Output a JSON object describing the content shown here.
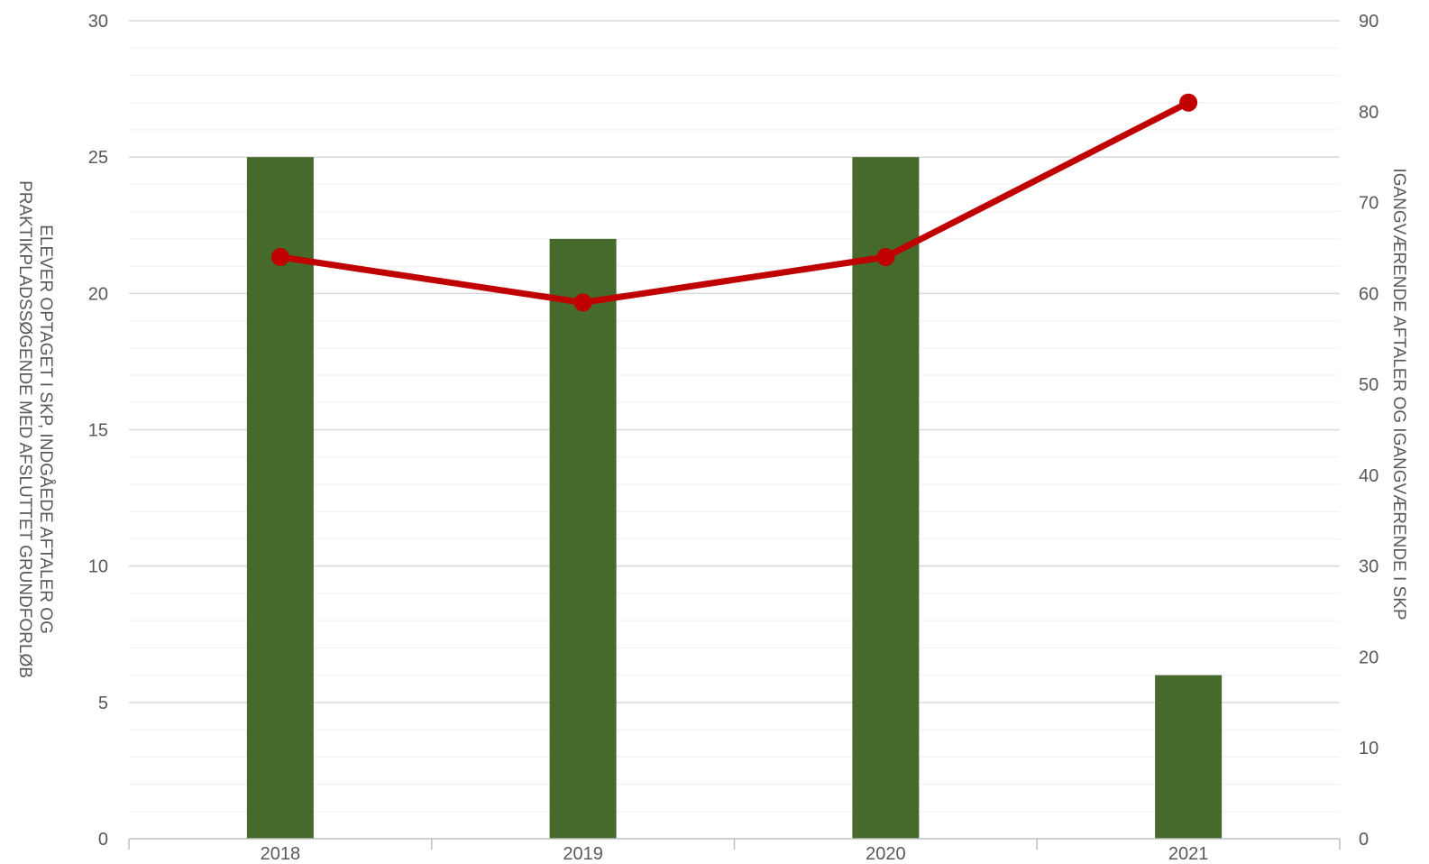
{
  "chart_data": {
    "type": "bar",
    "categories": [
      "2018",
      "2019",
      "2020",
      "2021"
    ],
    "series": [
      {
        "type": "bar",
        "axis": "left",
        "values": [
          25,
          22,
          25,
          6
        ]
      },
      {
        "type": "line",
        "axis": "right",
        "values": [
          64,
          59,
          64,
          81
        ]
      }
    ],
    "ylabel_left_lines": [
      "ELEVER OPTAGET I SKP, INDGÅEDE AFTALER OG",
      "PRAKTIKPLADSSØGENDE MED AFSLUTTET GRUNDFORLØB"
    ],
    "ylabel_right": "IGANGVÆRENDE AFTALER OG IGANGVÆRENDE I SKP",
    "ylim_left": [
      0,
      30
    ],
    "yticks_left": [
      "0",
      "5",
      "10",
      "15",
      "20",
      "25",
      "30"
    ],
    "ylim_right": [
      0,
      90
    ],
    "yticks_right": [
      "0",
      "10",
      "20",
      "30",
      "40",
      "50",
      "60",
      "70",
      "80",
      "90"
    ],
    "grid": true,
    "legend": "none",
    "colors": {
      "bar": "#46692c",
      "line": "#c00000",
      "major_grid": "#d9d9d9",
      "minor_grid": "#f0f0f0",
      "axis_line": "#bfbfbf",
      "text": "#595959"
    }
  }
}
